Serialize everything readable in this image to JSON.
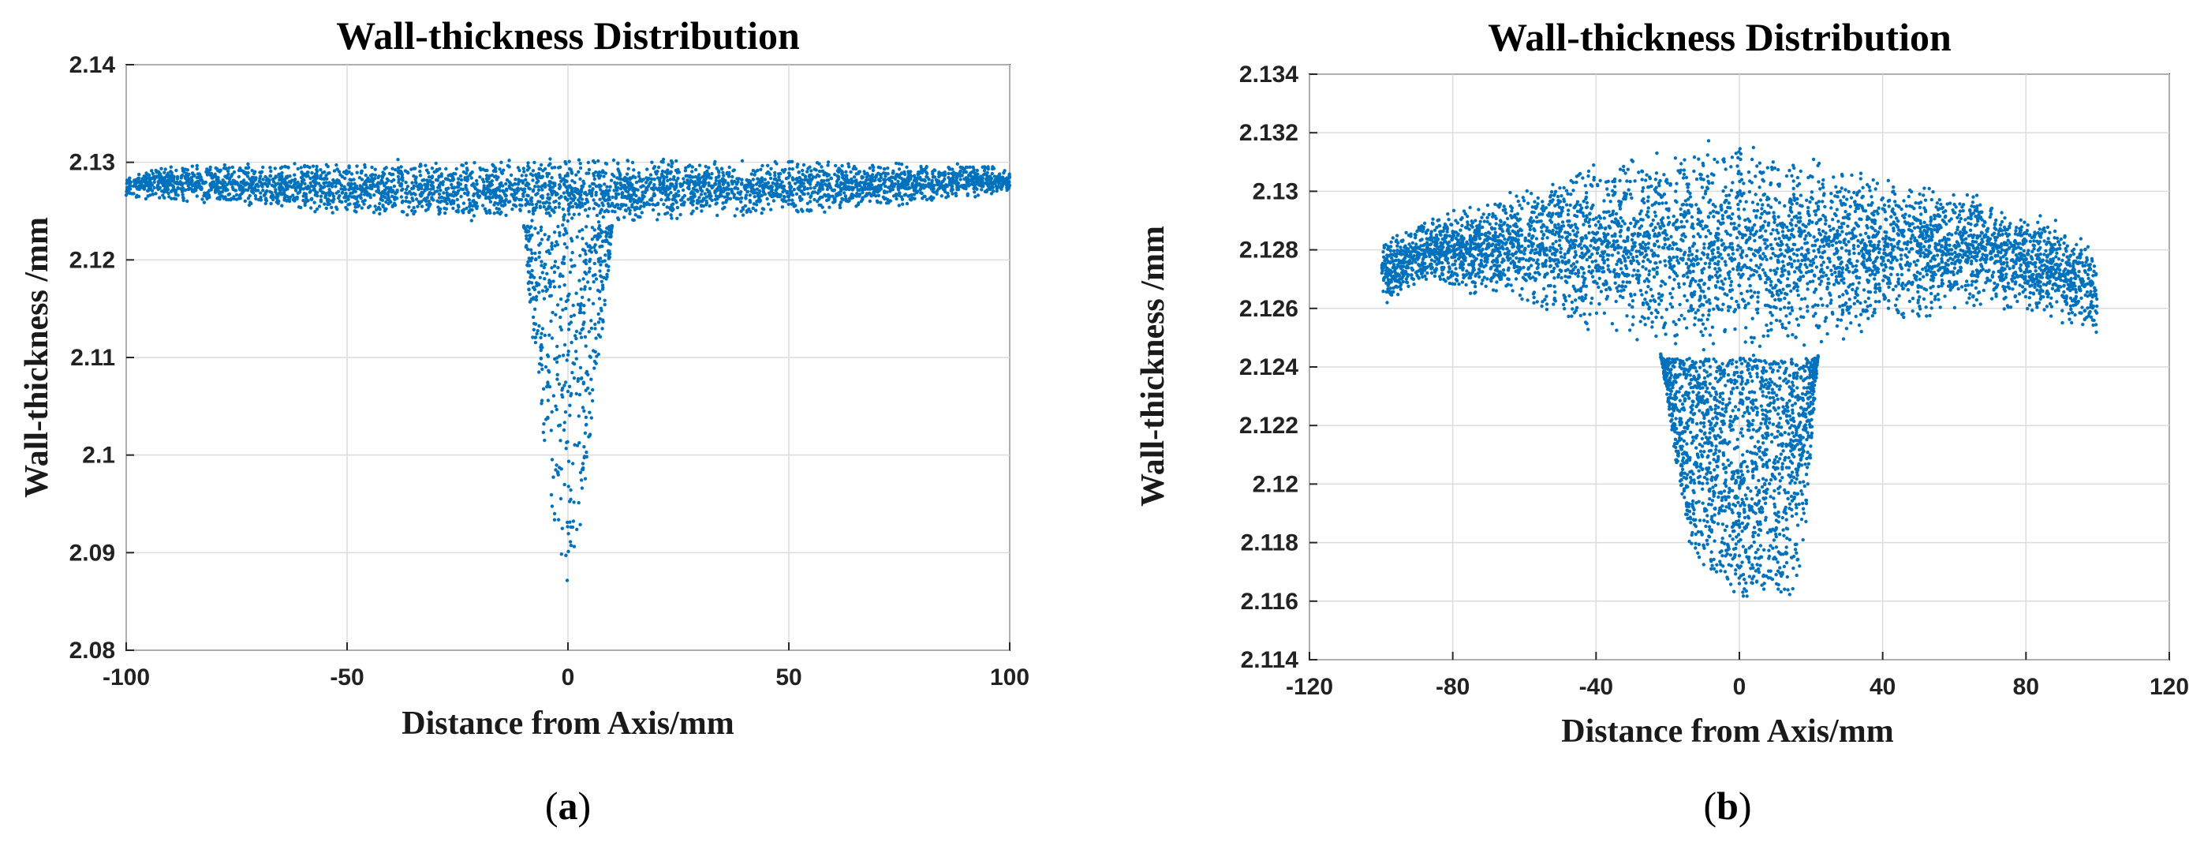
{
  "chart_data": [
    {
      "type": "scatter",
      "panel_label": "(a)",
      "panel_letter": "a",
      "title": "Wall-thickness Distribution",
      "xlabel": "Distance from Axis/mm",
      "ylabel": "Wall-thickness /mm",
      "xlim": [
        -100,
        100
      ],
      "ylim": [
        2.08,
        2.14
      ],
      "xticks": [
        -100,
        -50,
        0,
        50,
        100
      ],
      "xtick_labels": [
        "-100",
        "-50",
        "0",
        "50",
        "100"
      ],
      "yticks": [
        2.08,
        2.09,
        2.1,
        2.11,
        2.12,
        2.13,
        2.14
      ],
      "ytick_labels": [
        "2.08",
        "2.09",
        "2.1",
        "2.11",
        "2.12",
        "2.13",
        "2.14"
      ],
      "grid": true,
      "marker_color": "#0072BD",
      "series": [
        {
          "name": "wall thickness",
          "description_points": "dense band from x=-100 to 100 between about 2.1235 and 2.1305; sparse tail from x=-10 to 10 down to about 2.085",
          "band_upper": [
            [
              -100,
              2.1285
            ],
            [
              -95,
              2.1295
            ],
            [
              -75,
              2.13
            ],
            [
              -50,
              2.1302
            ],
            [
              -25,
              2.1305
            ],
            [
              0,
              2.1305
            ],
            [
              25,
              2.1305
            ],
            [
              50,
              2.1303
            ],
            [
              75,
              2.13
            ],
            [
              95,
              2.1298
            ],
            [
              100,
              2.129
            ]
          ],
          "band_lower": [
            [
              -100,
              2.1265
            ],
            [
              -95,
              2.1262
            ],
            [
              -75,
              2.1255
            ],
            [
              -50,
              2.1245
            ],
            [
              -25,
              2.124
            ],
            [
              0,
              2.1235
            ],
            [
              25,
              2.124
            ],
            [
              50,
              2.1245
            ],
            [
              75,
              2.1255
            ],
            [
              95,
              2.1265
            ],
            [
              100,
              2.127
            ]
          ],
          "tail_lower": [
            [
              -10,
              2.1235
            ],
            [
              -8,
              2.112
            ],
            [
              -6,
              2.104
            ],
            [
              -4,
              2.096
            ],
            [
              -2,
              2.089
            ],
            [
              0,
              2.085
            ],
            [
              2,
              2.087
            ],
            [
              4,
              2.097
            ],
            [
              6,
              2.104
            ],
            [
              8,
              2.112
            ],
            [
              10,
              2.1235
            ]
          ]
        }
      ]
    },
    {
      "type": "scatter",
      "panel_label": "(b)",
      "panel_letter": "b",
      "title": "Wall-thickness Distribution",
      "xlabel": "Distance from Axis/mm",
      "ylabel": "Wall-thickness /mm",
      "xlim": [
        -120,
        120
      ],
      "ylim": [
        2.114,
        2.134
      ],
      "xticks": [
        -120,
        -80,
        -40,
        0,
        40,
        80,
        120
      ],
      "xtick_labels": [
        "-120",
        "-80",
        "-40",
        "0",
        "40",
        "80",
        "120"
      ],
      "yticks": [
        2.114,
        2.116,
        2.118,
        2.12,
        2.122,
        2.124,
        2.126,
        2.128,
        2.13,
        2.132,
        2.134
      ],
      "ytick_labels": [
        "2.114",
        "2.116",
        "2.118",
        "2.12",
        "2.122",
        "2.124",
        "2.126",
        "2.128",
        "2.13",
        "2.132",
        "2.134"
      ],
      "grid": true,
      "marker_color": "#0072BD",
      "series": [
        {
          "name": "wall thickness",
          "description_points": "broad cap from x=-100 to 100 between about 2.124 and 2.1318; dense tail from x=-22 to 22 down to about 2.116",
          "band_upper": [
            [
              -100,
              2.1285
            ],
            [
              -90,
              2.129
            ],
            [
              -70,
              2.1298
            ],
            [
              -50,
              2.1308
            ],
            [
              -30,
              2.1315
            ],
            [
              -15,
              2.1318
            ],
            [
              0,
              2.1318
            ],
            [
              15,
              2.1315
            ],
            [
              30,
              2.131
            ],
            [
              50,
              2.1305
            ],
            [
              70,
              2.1298
            ],
            [
              90,
              2.129
            ],
            [
              100,
              2.1282
            ]
          ],
          "band_lower": [
            [
              -100,
              2.126
            ],
            [
              -90,
              2.1268
            ],
            [
              -70,
              2.1263
            ],
            [
              -50,
              2.1255
            ],
            [
              -30,
              2.1248
            ],
            [
              -15,
              2.1245
            ],
            [
              0,
              2.1243
            ],
            [
              15,
              2.1245
            ],
            [
              30,
              2.1248
            ],
            [
              50,
              2.1255
            ],
            [
              70,
              2.126
            ],
            [
              90,
              2.1255
            ],
            [
              100,
              2.125
            ]
          ],
          "tail_lower": [
            [
              -22,
              2.1245
            ],
            [
              -18,
              2.121
            ],
            [
              -14,
              2.118
            ],
            [
              -10,
              2.1172
            ],
            [
              -5,
              2.1168
            ],
            [
              0,
              2.116
            ],
            [
              5,
              2.1163
            ],
            [
              10,
              2.1165
            ],
            [
              14,
              2.116
            ],
            [
              18,
              2.1175
            ],
            [
              22,
              2.1245
            ]
          ]
        }
      ]
    }
  ]
}
